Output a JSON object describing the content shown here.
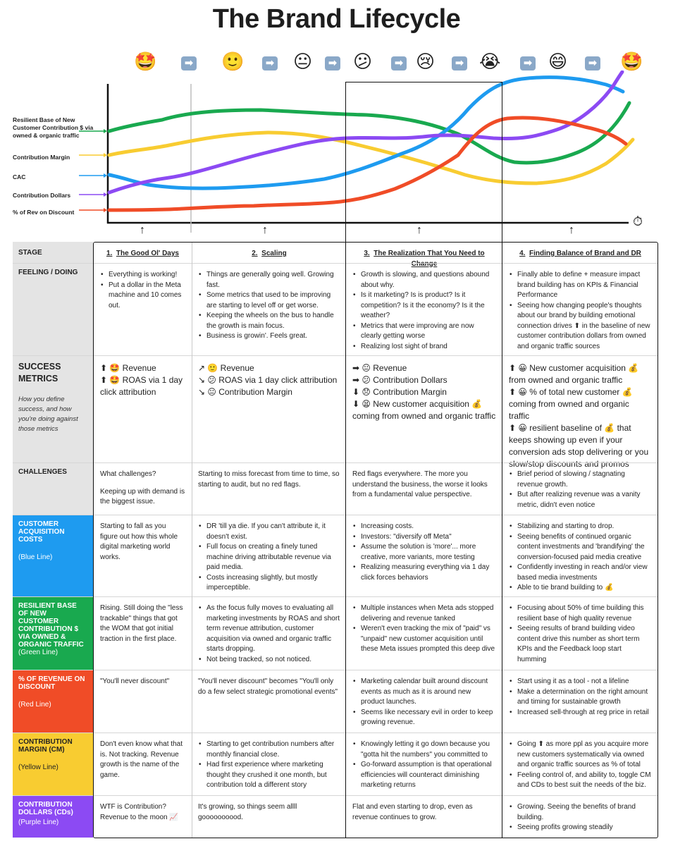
{
  "title": "The Brand Lifecycle",
  "colors": {
    "green": "#19a94f",
    "yellow": "#f8cc31",
    "blue": "#1e9bf0",
    "purple": "#8c4af3",
    "red": "#f04c27"
  },
  "emoji_row": [
    {
      "name": "star-struck-face-icon",
      "glyph": "🤩"
    },
    {
      "name": "right-arrow-icon",
      "glyph": "➡"
    },
    {
      "name": "slightly-smiling-face-icon",
      "glyph": "🙂"
    },
    {
      "name": "right-arrow-icon",
      "glyph": "➡"
    },
    {
      "name": "neutral-face-icon",
      "glyph": "😐"
    },
    {
      "name": "right-arrow-icon",
      "glyph": "➡"
    },
    {
      "name": "confused-face-icon",
      "glyph": "😕"
    },
    {
      "name": "right-arrow-icon",
      "glyph": "➡"
    },
    {
      "name": "crying-face-icon",
      "glyph": "😢"
    },
    {
      "name": "right-arrow-icon",
      "glyph": "➡"
    },
    {
      "name": "loudly-crying-face-icon",
      "glyph": "😭"
    },
    {
      "name": "right-arrow-icon",
      "glyph": "➡"
    },
    {
      "name": "grinning-face-icon",
      "glyph": "😄"
    },
    {
      "name": "right-arrow-icon",
      "glyph": "➡"
    },
    {
      "name": "star-struck-face-icon",
      "glyph": "🤩"
    }
  ],
  "series_labels": {
    "green": "Resilient Base of New Customer Contribution $ via owned & organic traffic",
    "yellow": "Contribution Margin",
    "blue": "CAC",
    "purple": "Contribution Dollars",
    "red": "% of Rev on Discount"
  },
  "timer_icon": "⏱",
  "table": {
    "stage_label": "STAGE",
    "stages": [
      {
        "num": "1.",
        "name": "The Good Ol' Days"
      },
      {
        "num": "2.",
        "name": "Scaling"
      },
      {
        "num": "3.",
        "name": "The Realization That You Need to Change"
      },
      {
        "num": "4.",
        "name": "Finding Balance of Brand and DR"
      }
    ],
    "feeling_label": "FEELING / DOING",
    "feeling": [
      [
        "Everything is working!",
        "Put a dollar in the Meta machine and 10 comes out."
      ],
      [
        "Things are generally going well. Growing fast.",
        "Some metrics that used to be improving are starting to level off or get worse.",
        "Keeping the wheels on the bus to handle the growth is main focus.",
        "Business is growin'. Feels great."
      ],
      [
        "Growth is slowing, and questions abound about why.",
        "Is it marketing? Is is product? Is it competition? Is it the economy? Is it the weather?",
        "Metrics that were improving are now clearly getting worse",
        "Realizing lost sight of brand"
      ],
      [
        "Finally able to define + measure impact brand building has on KPIs  & Financial Performance",
        "Seeing how changing people's thoughts about our brand by building emotional connection drives ⬆ in the baseline of new customer contribution dollars from owned and organic traffic sources"
      ]
    ],
    "success_label": "SUCCESS METRICS",
    "success_sub": "How you define success, and how you're doing against those metrics",
    "success": [
      [
        "⬆ 🤩 Revenue",
        "⬆ 🤩 ROAS via 1 day click attribution"
      ],
      [
        "↗ 🙂 Revenue",
        "↘ 😕 ROAS via 1 day click attribution",
        "↘ 😐 Contribution Margin"
      ],
      [
        "➡ 😐 Revenue",
        "➡ 😕 Contribution Dollars",
        "⬇ 😞 Contribution Margin",
        "⬇ 😫 New customer acquisition 💰 coming from owned and organic traffic"
      ],
      [
        "⬆ 😀 New customer acquisition 💰 from owned and organic traffic",
        "⬆ 😀 % of total new customer 💰 coming from owned and organic traffic",
        "⬆ 😀 resilient baseline of 💰 that keeps showing up even if your conversion ads stop delivering or you slow/stop discounts and promos"
      ]
    ],
    "challenges_label": "CHALLENGES",
    "challenges": [
      {
        "type": "p",
        "items": [
          "What challenges?",
          "Keeping up with demand is the biggest issue."
        ]
      },
      {
        "type": "p",
        "items": [
          "Starting to miss forecast from time to time, so starting to audit, but no red flags."
        ]
      },
      {
        "type": "p",
        "items": [
          "Red flags everywhere. The more you understand the business, the worse it looks from a fundamental value perspective."
        ]
      },
      {
        "type": "ul",
        "items": [
          "Brief period of slowing / stagnating revenue growth.",
          "But after realizing revenue was a vanity metric, didn't even notice"
        ]
      }
    ],
    "cac_label": "CUSTOMER ACQUISITION COSTS",
    "cac_sub": "(Blue Line)",
    "cac": [
      {
        "type": "p",
        "items": [
          "Starting to fall as you figure out how this whole digital marketing world works."
        ]
      },
      {
        "type": "ul",
        "items": [
          "DR 'till ya die. If you can't attribute it, it doesn't exist.",
          "Full focus on creating a finely tuned machine driving attributable revenue via paid media.",
          "Costs increasing slightly, but mostly imperceptible."
        ]
      },
      {
        "type": "ul",
        "items": [
          "Increasing costs.",
          "Investors: \"diversify off Meta\"",
          "Assume the solution is 'more'... more creative, more variants, more testing",
          "Realizing measuring everything via 1 day click forces behaviors"
        ]
      },
      {
        "type": "ul",
        "items": [
          "Stabilizing and starting to drop.",
          "Seeing benefits of continued organic content investments and 'brandifying' the conversion-focused paid media creative",
          "Confidently investing in reach and/or view based media investments",
          "Able to tie brand building to 💰"
        ]
      }
    ],
    "resilient_label": "RESILIENT BASE OF NEW CUSTOMER CONTRIBUTION $ VIA OWNED & ORGANIC TRAFFIC",
    "resilient_sub": "(Green Line)",
    "resilient": [
      {
        "type": "p",
        "items": [
          "Rising. Still doing the \"less trackable\" things that got the WOM that got initial traction in the first place."
        ]
      },
      {
        "type": "ul",
        "items": [
          "As the focus fully moves to evaluating all marketing investments by ROAS and short term revenue attribution, customer acquisition via owned and organic traffic starts dropping.",
          "Not being tracked, so not noticed."
        ]
      },
      {
        "type": "ul",
        "items": [
          "Multiple instances when Meta ads stopped delivering and revenue tanked",
          "Weren't even tracking the mix of \"paid\" vs \"unpaid\" new customer acquisition until these Meta issues prompted this deep dive"
        ]
      },
      {
        "type": "ul",
        "items": [
          "Focusing about 50% of time building this resilient base of high quality revenue",
          "Seeing results of brand building video content drive this number as short term KPIs and the Feedback loop start humming"
        ]
      }
    ],
    "discount_label": "% OF REVENUE ON DISCOUNT",
    "discount_sub": "(Red Line)",
    "discount": [
      {
        "type": "p",
        "items": [
          "\"You'll never discount\""
        ]
      },
      {
        "type": "p",
        "items": [
          "\"You'll never discount\" becomes \"You'll only do a few select strategic promotional events\""
        ]
      },
      {
        "type": "ul",
        "items": [
          "Marketing calendar built around discount events as much as it is around new product launches.",
          "Seems like necessary evil in order to keep growing revenue."
        ]
      },
      {
        "type": "ul",
        "items": [
          "Start using it as a tool - not a lifeline",
          "Make a determination on the right amount and timing for sustainable growth",
          "Increased sell-through at reg price in retail"
        ]
      }
    ],
    "cm_label": "CONTRIBUTION MARGIN (CM)",
    "cm_sub": "(Yellow Line)",
    "cm": [
      {
        "type": "p",
        "items": [
          "Don't even know what that is. Not tracking. Revenue growth is the name of the game."
        ]
      },
      {
        "type": "ul",
        "items": [
          "Starting to get contribution numbers after monthly financial close.",
          "Had first experience where marketing thought they crushed it one month, but contribution told a different story"
        ]
      },
      {
        "type": "ul",
        "items": [
          "Knowingly letting it go down because you \"gotta hit the numbers\" you committed to",
          "Go-forward assumption is that operational efficiencies will counteract diminishing marketing returns"
        ]
      },
      {
        "type": "ul",
        "items": [
          "Going ⬆ as more ppl as you acquire more new customers systematically via owned and organic traffic sources as % of total",
          "Feeling control of, and ability to, toggle CM and CDs to best suit the needs of the biz."
        ]
      }
    ],
    "cd_label": "CONTRIBUTION DOLLARS (CDs)",
    "cd_sub": "(Purple Line)",
    "cd": [
      {
        "type": "p",
        "items": [
          "WTF is Contribution? Revenue to the moon 📈"
        ]
      },
      {
        "type": "p",
        "items": [
          "It's growing, so things seem allll goooooooood."
        ]
      },
      {
        "type": "p",
        "items": [
          "Flat and even starting to drop, even as revenue continues to grow."
        ]
      },
      {
        "type": "ul",
        "items": [
          "Growing. Seeing the benefits of brand building.",
          "Seeing profits growing steadily"
        ]
      }
    ]
  }
}
